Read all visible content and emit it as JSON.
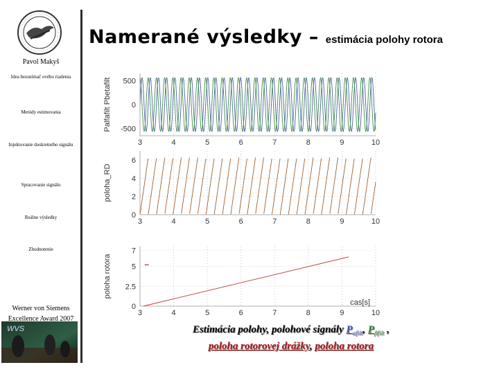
{
  "title": {
    "main": "Namerané výsledky – ",
    "sub": "estimácia polohy rotora"
  },
  "sidebar": {
    "author": "Pavol Makyš",
    "items": [
      {
        "label": "Idea bezsnímač ového riadenia"
      },
      {
        "label": "Metódy estimovania"
      },
      {
        "label": "Injektovanie doskretného signálu"
      },
      {
        "label": "Spracovanie signálu"
      },
      {
        "label": "Reálne výsledky"
      },
      {
        "label": "Zhodnotenie"
      }
    ],
    "award_line1": "Werner von Siemens",
    "award_line2": "Excellence Award 2007",
    "photo_label": "WVS"
  },
  "chart_data": [
    {
      "type": "line",
      "ylabel": "Palfafilt Pbetafilt",
      "xlim": [
        3,
        10
      ],
      "ylim": [
        -650,
        650
      ],
      "yticks": [
        500,
        0,
        -500
      ],
      "xticks": [
        3,
        4,
        5,
        6,
        7,
        8,
        9,
        10
      ],
      "series": [
        {
          "color": "#4a5fb0",
          "amplitude": 560,
          "frequency": 4.1,
          "phase": 0
        },
        {
          "color": "#3f8f3f",
          "amplitude": 560,
          "frequency": 4.1,
          "phase": 1.57
        }
      ]
    },
    {
      "type": "line",
      "ylabel": "poloha_RD",
      "xlim": [
        3,
        10
      ],
      "ylim": [
        0,
        7
      ],
      "yticks": [
        6,
        4,
        2,
        0
      ],
      "xticks": [
        3,
        4,
        5,
        6,
        7,
        8,
        9,
        10
      ],
      "series": [
        {
          "color": "#a06030",
          "shape": "sawtooth",
          "period": 0.245,
          "max": 6.28
        }
      ]
    },
    {
      "type": "line",
      "ylabel": "poloha rotora",
      "xlabel": "cas[s]",
      "xlim": [
        3,
        10
      ],
      "ylim": [
        0,
        7.5
      ],
      "yticks": [
        7,
        5,
        2.5,
        0
      ],
      "xticks": [
        3,
        4,
        5,
        6,
        7,
        8,
        9,
        10
      ],
      "series": [
        {
          "color": "#c03030",
          "x": [
            3.1,
            9.2
          ],
          "y": [
            0,
            6.2
          ]
        },
        {
          "color": "#c03030",
          "x": [
            3.2
          ],
          "y": [
            5.2
          ],
          "style": "marker"
        }
      ]
    }
  ],
  "caption": {
    "line1_a": "Estimácia polohy, polohové signály ",
    "p": "P",
    "alfa": "αfilt",
    "comma": ", ",
    "beta": "βfilt",
    "line1_b": " ,",
    "line2_a": "poloha rotorovej drážky",
    "sep": ", ",
    "line2_b": "poloha rotora"
  },
  "colors": {
    "blue": "#3a4fa0",
    "green": "#2f7a2f",
    "red": "#a01818",
    "divider": "#2c2c2c"
  }
}
